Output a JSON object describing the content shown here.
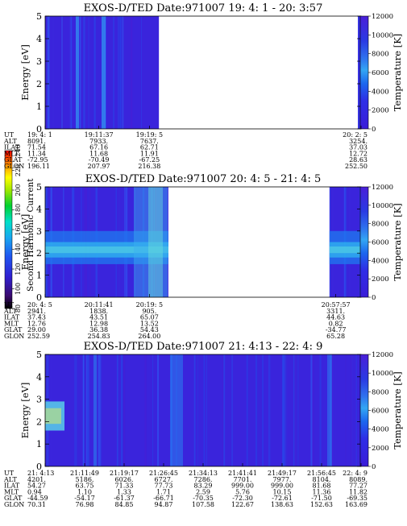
{
  "colorbar": {
    "label": "Second Harmonic Current",
    "ticks": [
      "80",
      "100",
      "120",
      "140",
      "160",
      "180",
      "200",
      "220",
      "240"
    ]
  },
  "chart_data": [
    {
      "type": "heatmap",
      "title": "EXOS-D/TED   Date:971007   19: 4: 1 - 20: 3:57",
      "ylabel": "Energy [eV]",
      "ylim": [
        0,
        5
      ],
      "yticks": [
        "0",
        "1",
        "2",
        "3",
        "4",
        "5"
      ],
      "zlabel": "Temperature [K]",
      "zlim": [
        0,
        12000
      ],
      "zticks": [
        "0",
        "2000",
        "4000",
        "6000",
        "8000",
        "10000",
        "12000"
      ],
      "data_span": [
        0,
        0.36,
        0.99,
        1.0
      ],
      "ephemeris": {
        "rows": [
          "UT",
          "ALT",
          "ILAT",
          "MLT",
          "GLAT",
          "GLON"
        ],
        "columns": [
          {
            "pos": 0.0,
            "values": [
              "19: 4: 1",
              "8091.",
              "71.54",
              "11.34",
              "-72.95",
              "196.11"
            ]
          },
          {
            "pos": 0.17,
            "values": [
              "19:11:37",
              "7933.",
              "67.16",
              "11.68",
              "-70.49",
              "207.97"
            ]
          },
          {
            "pos": 0.33,
            "values": [
              "19:19: 5",
              "7637.",
              "62.71",
              "11.91",
              "-67.25",
              "216.38"
            ]
          },
          {
            "pos": 1.0,
            "values": [
              "20: 2: 5",
              "3254.",
              "37.03",
              "12.72",
              "28.63",
              "252.50"
            ]
          }
        ]
      }
    },
    {
      "type": "heatmap",
      "title": "EXOS-D/TED   Date:971007   20: 4: 5 - 21: 4: 5",
      "ylabel": "Energy [eV]",
      "ylim": [
        0,
        5
      ],
      "yticks": [
        "0",
        "1",
        "2",
        "3",
        "4",
        "5"
      ],
      "zlabel": "Temperature [K]",
      "zlim": [
        0,
        12000
      ],
      "zticks": [
        "0",
        "2000",
        "4000",
        "6000",
        "8000",
        "10000",
        "12000"
      ],
      "data_span": [
        0,
        0.39,
        0.9,
        1.0
      ],
      "ephemeris": {
        "rows": [
          "UT",
          "ALT",
          "ILAT",
          "MLT",
          "GLAT",
          "GLON"
        ],
        "columns": [
          {
            "pos": 0.0,
            "values": [
              "20: 4: 5",
              "2941.",
              "37.43",
              "12.76",
              "29.00",
              "252.59"
            ]
          },
          {
            "pos": 0.17,
            "values": [
              "20:11:41",
              "1838.",
              "43.51",
              "12.98",
              "36.38",
              "254.83"
            ]
          },
          {
            "pos": 0.33,
            "values": [
              "20:19: 5",
              "905.",
              "65.07",
              "13.52",
              "54.43",
              "264.00"
            ]
          },
          {
            "pos": 0.92,
            "values": [
              "20:57:57",
              "3311.",
              "44.63",
              "0.82",
              "-34.77",
              "65.28"
            ]
          }
        ]
      }
    },
    {
      "type": "heatmap",
      "title": "EXOS-D/TED   Date:971007   21: 4:13 - 22: 4: 9",
      "ylabel": "Energy [eV]",
      "ylim": [
        0,
        5
      ],
      "yticks": [
        "0",
        "1",
        "2",
        "3",
        "4",
        "5"
      ],
      "zlabel": "Temperature [K]",
      "zlim": [
        0,
        12000
      ],
      "zticks": [
        "0",
        "2000",
        "4000",
        "6000",
        "8000",
        "10000",
        "12000"
      ],
      "data_span": [
        0,
        1.0
      ],
      "ephemeris": {
        "rows": [
          "UT",
          "ALT",
          "ILAT",
          "MLT",
          "GLAT",
          "GLON"
        ],
        "columns": [
          {
            "pos": 0.0,
            "values": [
              "21: 4:13",
              "4201.",
              "54.27",
              "0.94",
              "-44.59",
              "70.31"
            ]
          },
          {
            "pos": 0.125,
            "values": [
              "21:11:49",
              "5186.",
              "63.75",
              "1.10",
              "-54.17",
              "76.98"
            ]
          },
          {
            "pos": 0.25,
            "values": [
              "21:19:17",
              "6026.",
              "71.33",
              "1.33",
              "-61.37",
              "84.85"
            ]
          },
          {
            "pos": 0.375,
            "values": [
              "21:26:45",
              "6727.",
              "77.73",
              "1.71",
              "-66.71",
              "94.87"
            ]
          },
          {
            "pos": 0.5,
            "values": [
              "21:34:13",
              "7286.",
              "83.29",
              "2.59",
              "-70.35",
              "107.58"
            ]
          },
          {
            "pos": 0.625,
            "values": [
              "21:41:41",
              "7701.",
              "999.00",
              "5.76",
              "-72.30",
              "122.67"
            ]
          },
          {
            "pos": 0.75,
            "values": [
              "21:49:17",
              "7977.",
              "999.00",
              "10.15",
              "-72.61",
              "138.63"
            ]
          },
          {
            "pos": 0.875,
            "values": [
              "21:56:45",
              "8104.",
              "81.68",
              "11.36",
              "-71.50",
              "152.63"
            ]
          },
          {
            "pos": 1.0,
            "values": [
              "22: 4: 9",
              "8089.",
              "77.27",
              "11.82",
              "-69.35",
              "163.69"
            ]
          }
        ]
      }
    }
  ]
}
